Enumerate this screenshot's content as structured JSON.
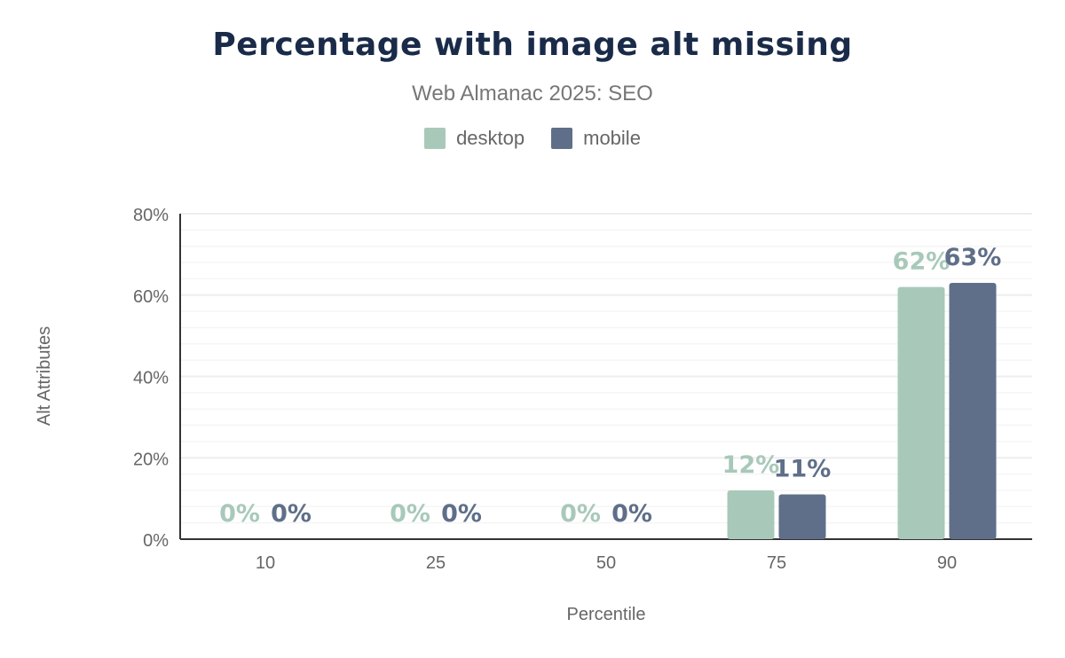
{
  "chart_data": {
    "type": "bar",
    "title": "Percentage with image alt missing",
    "subtitle": "Web Almanac 2025: SEO",
    "xlabel": "Percentile",
    "ylabel": "Alt Attributes",
    "categories": [
      "10",
      "25",
      "50",
      "75",
      "90"
    ],
    "series": [
      {
        "name": "desktop",
        "color": "#a8c9b9",
        "values": [
          0,
          0,
          0,
          12,
          62
        ],
        "labels": [
          "0%",
          "0%",
          "0%",
          "12%",
          "62%"
        ]
      },
      {
        "name": "mobile",
        "color": "#5f6f89",
        "values": [
          0,
          0,
          0,
          11,
          63
        ],
        "labels": [
          "0%",
          "0%",
          "0%",
          "11%",
          "63%"
        ]
      }
    ],
    "ylim": [
      0,
      80
    ],
    "yticks": [
      "0%",
      "20%",
      "40%",
      "60%",
      "80%"
    ],
    "grid": true,
    "legend": "top-center"
  }
}
